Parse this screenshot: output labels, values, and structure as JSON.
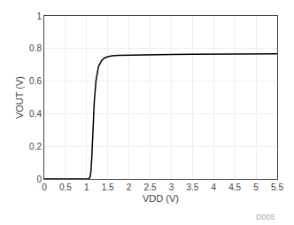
{
  "chart_data": {
    "type": "line",
    "x": [
      0,
      1.0,
      1.05,
      1.08,
      1.1,
      1.12,
      1.15,
      1.18,
      1.22,
      1.28,
      1.35,
      1.42,
      1.5,
      1.6,
      1.75,
      2.0,
      2.5,
      3.0,
      3.5,
      4.0,
      4.5,
      5.0,
      5.5
    ],
    "values": [
      0,
      0.0,
      0.0,
      0.01,
      0.04,
      0.12,
      0.3,
      0.47,
      0.6,
      0.69,
      0.725,
      0.742,
      0.75,
      0.755,
      0.758,
      0.76,
      0.762,
      0.764,
      0.765,
      0.766,
      0.767,
      0.768,
      0.768
    ],
    "color": "#000000",
    "x_label": "VDD (V)",
    "y_label": "VOUT (V)",
    "xlim": [
      0,
      5.5
    ],
    "ylim": [
      0,
      1.0
    ],
    "xticks": [
      0,
      0.5,
      1,
      1.5,
      2,
      2.5,
      3,
      3.5,
      4,
      4.5,
      5,
      5.5
    ],
    "yticks": [
      0,
      0.2,
      0.4,
      0.6,
      0.8,
      1
    ],
    "grid": true,
    "annotations": [
      "D005"
    ]
  }
}
